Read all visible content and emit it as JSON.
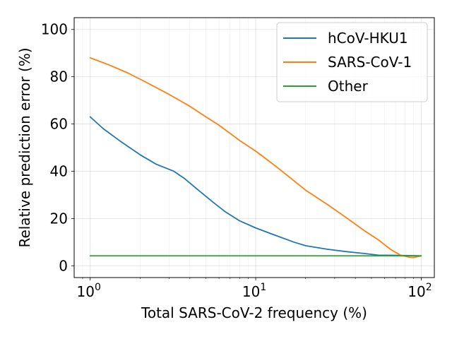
{
  "chart_data": {
    "type": "line",
    "xlabel": "Total SARS-CoV-2 frequency (%)",
    "ylabel": "Relative prediction error (%)",
    "x_scale": "log",
    "xlim": [
      0.8,
      120
    ],
    "ylim": [
      -5,
      105
    ],
    "grid": true,
    "legend_position": "top-right",
    "x_ticks": [
      {
        "value": 1,
        "base": "10",
        "exp": "0"
      },
      {
        "value": 10,
        "base": "10",
        "exp": "1"
      },
      {
        "value": 100,
        "base": "10",
        "exp": "2"
      }
    ],
    "y_ticks": [
      0,
      20,
      40,
      60,
      80,
      100
    ],
    "series": [
      {
        "name": "hCoV-HKU1",
        "color": "#1f77b4",
        "points": [
          [
            1,
            63
          ],
          [
            1.2,
            58
          ],
          [
            1.5,
            53
          ],
          [
            2,
            47
          ],
          [
            2.5,
            43
          ],
          [
            3.2,
            40
          ],
          [
            3.7,
            37
          ],
          [
            4.5,
            32
          ],
          [
            5.5,
            27
          ],
          [
            6.5,
            23
          ],
          [
            8,
            19
          ],
          [
            10,
            16
          ],
          [
            13,
            13
          ],
          [
            17,
            10
          ],
          [
            20,
            8.5
          ],
          [
            27,
            7
          ],
          [
            35,
            6
          ],
          [
            45,
            5.2
          ],
          [
            55,
            4.5
          ],
          [
            70,
            4.4
          ],
          [
            85,
            4.3
          ],
          [
            100,
            4.2
          ]
        ]
      },
      {
        "name": "SARS-CoV-1",
        "color": "#ff7f0e",
        "points": [
          [
            1,
            88
          ],
          [
            1.3,
            85
          ],
          [
            1.7,
            81.5
          ],
          [
            2.2,
            77.5
          ],
          [
            3,
            72.5
          ],
          [
            4,
            67.5
          ],
          [
            5,
            63
          ],
          [
            6,
            59.5
          ],
          [
            8,
            53
          ],
          [
            10,
            48.5
          ],
          [
            13,
            42.5
          ],
          [
            17,
            36
          ],
          [
            20,
            32
          ],
          [
            27,
            26
          ],
          [
            35,
            20.5
          ],
          [
            45,
            15
          ],
          [
            55,
            11
          ],
          [
            65,
            7
          ],
          [
            75,
            4.5
          ],
          [
            85,
            3.6
          ],
          [
            90,
            3.5
          ],
          [
            100,
            4.2
          ]
        ]
      },
      {
        "name": "Other",
        "color": "#2ca02c",
        "points": [
          [
            1,
            4.2
          ],
          [
            100,
            4.2
          ]
        ]
      }
    ]
  }
}
